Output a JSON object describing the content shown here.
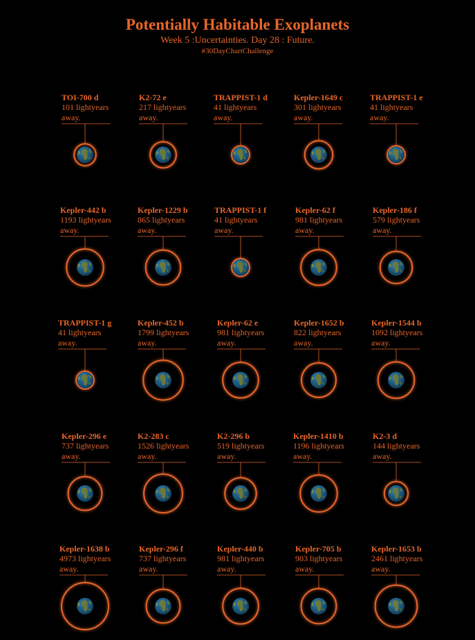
{
  "header": {
    "title": "Potentially Habitable Exoplanets",
    "subtitle": "Week 5 :Uncertainties. Day 28 : Future.",
    "hashtag": "#30DayChartChallenge"
  },
  "colors": {
    "background": "#000000",
    "accent": "#e8662a",
    "ocean": "#1f5f8b",
    "land": "#6b7a3a"
  },
  "chart_data": {
    "type": "scatter",
    "title": "Potentially Habitable Exoplanets",
    "encoding": "ring radius grows with distance",
    "distance_suffix": "lightyears",
    "away_label": "away.",
    "planets": [
      {
        "name": "TOI-700 d",
        "distance": 101
      },
      {
        "name": "K2-72 e",
        "distance": 217
      },
      {
        "name": "TRAPPIST-1 d",
        "distance": 41
      },
      {
        "name": "Kepler-1649 c",
        "distance": 301
      },
      {
        "name": "TRAPPIST-1 e",
        "distance": 41
      },
      {
        "name": "Kepler-442 b",
        "distance": 1193
      },
      {
        "name": "Kepler-1229 b",
        "distance": 865
      },
      {
        "name": "TRAPPIST-1 f",
        "distance": 41
      },
      {
        "name": "Kepler-62 f",
        "distance": 981
      },
      {
        "name": "Kepler-186 f",
        "distance": 579
      },
      {
        "name": "TRAPPIST-1 g",
        "distance": 41
      },
      {
        "name": "Kepler-452 b",
        "distance": 1799
      },
      {
        "name": "Kepler-62 e",
        "distance": 981
      },
      {
        "name": "Kepler-1652 b",
        "distance": 822
      },
      {
        "name": "Kepler-1544 b",
        "distance": 1092
      },
      {
        "name": "Kepler-296 e",
        "distance": 737
      },
      {
        "name": "K2-283 c",
        "distance": 1526
      },
      {
        "name": "K2-296 b",
        "distance": 519
      },
      {
        "name": "Kepler-1410 b",
        "distance": 1196
      },
      {
        "name": "K2-3 d",
        "distance": 144
      },
      {
        "name": "Kepler-1638 b",
        "distance": 4973
      },
      {
        "name": "Kepler-296 f",
        "distance": 737
      },
      {
        "name": "Kepler-440 b",
        "distance": 981
      },
      {
        "name": "Kepler-705 b",
        "distance": 903
      },
      {
        "name": "Kepler-1653 b",
        "distance": 2461
      }
    ]
  }
}
